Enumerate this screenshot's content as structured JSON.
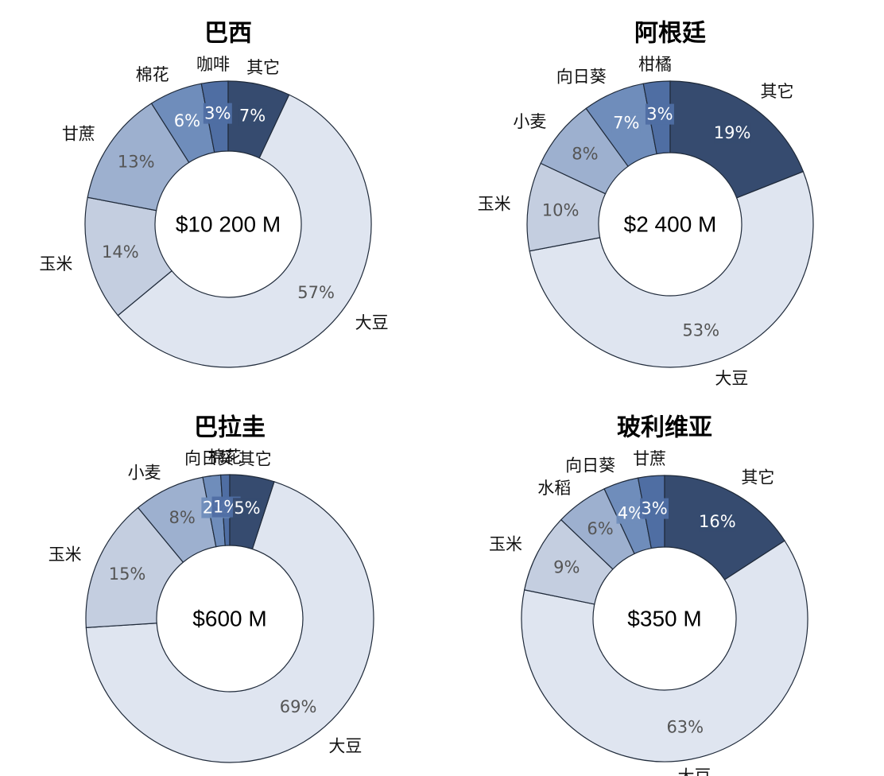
{
  "chart_data": [
    {
      "type": "pie",
      "title": "巴西",
      "center_label": "$10 200 M",
      "slices": [
        {
          "label": "大豆",
          "value": 57,
          "pct_label": "57%",
          "color": "#dfe5f0"
        },
        {
          "label": "玉米",
          "value": 14,
          "pct_label": "14%",
          "color": "#c4cee0"
        },
        {
          "label": "甘蔗",
          "value": 13,
          "pct_label": "13%",
          "color": "#9db0cf"
        },
        {
          "label": "棉花",
          "value": 6,
          "pct_label": "6%",
          "color": "#6f8dbb"
        },
        {
          "label": "咖啡",
          "value": 3,
          "pct_label": "3%",
          "color": "#4f6ea3"
        },
        {
          "label": "其它",
          "value": 7,
          "pct_label": "7%",
          "color": "#364b6f"
        }
      ]
    },
    {
      "type": "pie",
      "title": "阿根廷",
      "center_label": "$2 400 M",
      "slices": [
        {
          "label": "大豆",
          "value": 53,
          "pct_label": "53%",
          "color": "#dfe5f0"
        },
        {
          "label": "玉米",
          "value": 10,
          "pct_label": "10%",
          "color": "#c4cee0"
        },
        {
          "label": "小麦",
          "value": 8,
          "pct_label": "8%",
          "color": "#9db0cf"
        },
        {
          "label": "向日葵",
          "value": 7,
          "pct_label": "7%",
          "color": "#6f8dbb"
        },
        {
          "label": "柑橘",
          "value": 3,
          "pct_label": "3%",
          "color": "#4f6ea3"
        },
        {
          "label": "其它",
          "value": 19,
          "pct_label": "19%",
          "color": "#364b6f"
        }
      ]
    },
    {
      "type": "pie",
      "title": "巴拉圭",
      "center_label": "$600 M",
      "slices": [
        {
          "label": "大豆",
          "value": 69,
          "pct_label": "69%",
          "color": "#dfe5f0"
        },
        {
          "label": "玉米",
          "value": 15,
          "pct_label": "15%",
          "color": "#c4cee0"
        },
        {
          "label": "小麦",
          "value": 8,
          "pct_label": "8%",
          "color": "#9db0cf"
        },
        {
          "label": "向日葵",
          "value": 2,
          "pct_label": "2%",
          "color": "#6f8dbb"
        },
        {
          "label": "棉花",
          "value": 1,
          "pct_label": "1%",
          "color": "#4f6ea3"
        },
        {
          "label": "其它",
          "value": 5,
          "pct_label": "5%",
          "color": "#364b6f"
        }
      ]
    },
    {
      "type": "pie",
      "title": "玻利维亚",
      "center_label": "$350 M",
      "slices": [
        {
          "label": "大豆",
          "value": 63,
          "pct_label": "63%",
          "color": "#dfe5f0"
        },
        {
          "label": "玉米",
          "value": 9,
          "pct_label": "9%",
          "color": "#c4cee0"
        },
        {
          "label": "水稻",
          "value": 6,
          "pct_label": "6%",
          "color": "#9db0cf"
        },
        {
          "label": "向日葵",
          "value": 4,
          "pct_label": "4%",
          "color": "#6f8dbb"
        },
        {
          "label": "甘蔗",
          "value": 3,
          "pct_label": "3%",
          "color": "#4f6ea3"
        },
        {
          "label": "其它",
          "value": 16,
          "pct_label": "16%",
          "color": "#364b6f"
        }
      ]
    }
  ]
}
